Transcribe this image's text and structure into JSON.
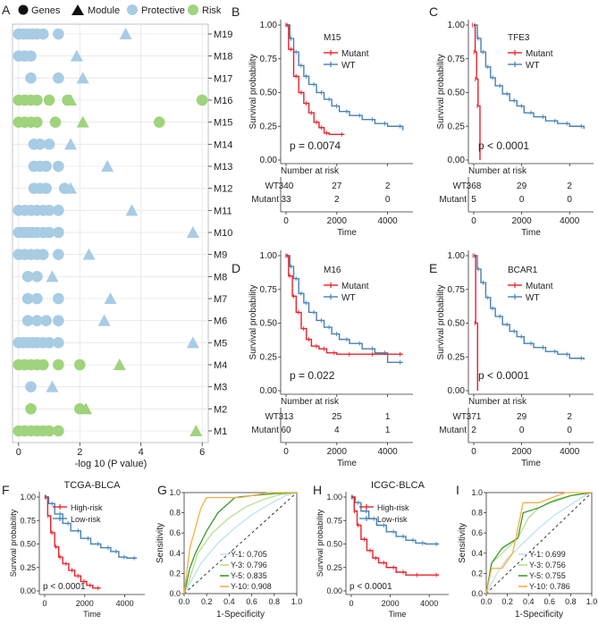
{
  "colors": {
    "protective": "#a8cce4",
    "risk": "#9fd37c",
    "wt": "#4682b4",
    "mutant": "#e8222a",
    "high": "#e8222a",
    "low": "#4682b4",
    "y1": "#bfe0f0",
    "y3": "#b6e08e",
    "y5": "#3a9a2a",
    "y10": "#f5b042"
  },
  "chart_data": [
    {
      "panel": "A",
      "type": "scatter",
      "legend": {
        "genes": "Genes",
        "module": "Module",
        "protective": "Protective",
        "risk": "Risk"
      },
      "xlabel": "-log 10 (P value)",
      "xticks": [
        "0",
        "2",
        "4",
        "6"
      ],
      "xlim": [
        -0.2,
        6.2
      ],
      "modules": [
        {
          "name": "M19",
          "cls": "protective",
          "genes": [
            0,
            0.15,
            0.3,
            0.45,
            0.6,
            0.8,
            1.3
          ],
          "module": 3.5
        },
        {
          "name": "M18",
          "cls": "protective",
          "genes": [
            0,
            0.2,
            0.4
          ],
          "module": 1.9
        },
        {
          "name": "M17",
          "cls": "protective",
          "genes": [
            0.4,
            1.3
          ],
          "module": 2.1
        },
        {
          "name": "M16",
          "cls": "risk",
          "genes": [
            0,
            0.2,
            0.4,
            0.6,
            1.0,
            1.6,
            6.0
          ],
          "module": 1.7
        },
        {
          "name": "M15",
          "cls": "risk",
          "genes": [
            0,
            0.2,
            0.4,
            0.6,
            1.2,
            4.6
          ],
          "module": 2.1
        },
        {
          "name": "M14",
          "cls": "protective",
          "genes": [
            0.5,
            0.7,
            1.0
          ],
          "module": 1.7
        },
        {
          "name": "M13",
          "cls": "protective",
          "genes": [
            0.5,
            0.7,
            0.9,
            1.3
          ],
          "module": 2.9
        },
        {
          "name": "M12",
          "cls": "protective",
          "genes": [
            0.5,
            0.7,
            0.9,
            1.5
          ],
          "module": 1.7
        },
        {
          "name": "M11",
          "cls": "protective",
          "genes": [
            0,
            0.2,
            0.4,
            0.6,
            0.8,
            1.0,
            1.3
          ],
          "module": 3.7
        },
        {
          "name": "M10",
          "cls": "protective",
          "genes": [
            0,
            0.15,
            0.3,
            0.45,
            0.6,
            0.8,
            1.0,
            1.3
          ],
          "module": 5.7
        },
        {
          "name": "M9",
          "cls": "protective",
          "genes": [
            0,
            0.2,
            0.4,
            0.6,
            0.8,
            1.3
          ],
          "module": 2.3
        },
        {
          "name": "M8",
          "cls": "protective",
          "genes": [
            0.3,
            0.6
          ],
          "module": 1.1
        },
        {
          "name": "M7",
          "cls": "protective",
          "genes": [
            0.3,
            0.6,
            1.3
          ],
          "module": 3.0
        },
        {
          "name": "M6",
          "cls": "protective",
          "genes": [
            0.3,
            0.6,
            0.9,
            1.3
          ],
          "module": 2.8
        },
        {
          "name": "M5",
          "cls": "protective",
          "genes": [
            0,
            0.15,
            0.3,
            0.45,
            0.6,
            0.8,
            1.0,
            1.3
          ],
          "module": 5.7
        },
        {
          "name": "M4",
          "cls": "risk",
          "genes": [
            0,
            0.2,
            0.4,
            0.6,
            0.8,
            1.3,
            2.0
          ],
          "module": 3.3
        },
        {
          "name": "M3",
          "cls": "protective",
          "genes": [
            0.4
          ],
          "module": 1.1
        },
        {
          "name": "M2",
          "cls": "risk",
          "genes": [
            0.4,
            2.0
          ],
          "module": 2.2
        },
        {
          "name": "M1",
          "cls": "risk",
          "genes": [
            0,
            0.2,
            0.4,
            0.6,
            0.8,
            1.0,
            1.3
          ],
          "module": 5.8
        }
      ]
    },
    {
      "panel": "B",
      "type": "line",
      "title": "M15",
      "ylabel": "Survival probability",
      "xlabel": "Time",
      "yticks": [
        "0.00",
        "0.25",
        "0.50",
        "0.75",
        "1.00"
      ],
      "xticks": [
        "0",
        "2000",
        "4000"
      ],
      "xlim": [
        0,
        5000
      ],
      "pvalue": "p = 0.0074",
      "legend": [
        "Mutant",
        "WT"
      ],
      "risk_title": "Number at risk",
      "risk_rows": [
        {
          "name": "WT",
          "values": [
            "340",
            "27",
            "2"
          ]
        },
        {
          "name": "Mutant",
          "values": [
            "33",
            "2",
            "0"
          ]
        }
      ],
      "series": [
        {
          "name": "WT",
          "x": [
            0,
            150,
            300,
            500,
            700,
            900,
            1200,
            1500,
            1800,
            2100,
            2500,
            3000,
            3500,
            4000,
            4600
          ],
          "y": [
            1,
            0.9,
            0.8,
            0.7,
            0.62,
            0.56,
            0.5,
            0.45,
            0.4,
            0.36,
            0.33,
            0.3,
            0.27,
            0.25,
            0.22
          ]
        },
        {
          "name": "Mutant",
          "x": [
            0,
            100,
            300,
            500,
            700,
            900,
            1100,
            1300,
            1500,
            1700,
            2300
          ],
          "y": [
            1,
            0.82,
            0.62,
            0.5,
            0.42,
            0.35,
            0.28,
            0.24,
            0.2,
            0.19,
            0.19
          ]
        }
      ]
    },
    {
      "panel": "C",
      "type": "line",
      "title": "TFE3",
      "ylabel": "Survival probability",
      "xlabel": "Time",
      "yticks": [
        "0.00",
        "0.25",
        "0.50",
        "0.75",
        "1.00"
      ],
      "xticks": [
        "0",
        "2000",
        "4000"
      ],
      "xlim": [
        0,
        5000
      ],
      "pvalue": "p < 0.0001",
      "legend": [
        "Mutant",
        "WT"
      ],
      "risk_title": "Number at risk",
      "risk_rows": [
        {
          "name": "WT",
          "values": [
            "368",
            "29",
            "2"
          ]
        },
        {
          "name": "Mutant",
          "values": [
            "5",
            "0",
            "0"
          ]
        }
      ],
      "series": [
        {
          "name": "WT",
          "x": [
            0,
            150,
            300,
            500,
            700,
            900,
            1200,
            1500,
            1800,
            2100,
            2500,
            3000,
            3500,
            4000,
            4600
          ],
          "y": [
            1,
            0.9,
            0.8,
            0.69,
            0.61,
            0.55,
            0.49,
            0.44,
            0.4,
            0.35,
            0.32,
            0.29,
            0.27,
            0.25,
            0.23
          ]
        },
        {
          "name": "Mutant",
          "x": [
            0,
            60,
            120,
            180,
            260
          ],
          "y": [
            1,
            0.8,
            0.6,
            0.4,
            0
          ]
        }
      ]
    },
    {
      "panel": "D",
      "type": "line",
      "title": "M16",
      "ylabel": "Survival probability",
      "xlabel": "Time",
      "yticks": [
        "0.00",
        "0.25",
        "0.50",
        "0.75",
        "1.00"
      ],
      "xticks": [
        "0",
        "2000",
        "4000"
      ],
      "xlim": [
        0,
        5000
      ],
      "pvalue": "p = 0.022",
      "legend": [
        "Mutant",
        "WT"
      ],
      "risk_title": "Number at risk",
      "risk_rows": [
        {
          "name": "WT",
          "values": [
            "313",
            "25",
            "1"
          ]
        },
        {
          "name": "Mutant",
          "values": [
            "60",
            "4",
            "1"
          ]
        }
      ],
      "series": [
        {
          "name": "WT",
          "x": [
            0,
            150,
            300,
            500,
            700,
            900,
            1200,
            1500,
            1800,
            2100,
            2500,
            3000,
            3500,
            4000,
            4600
          ],
          "y": [
            1,
            0.92,
            0.83,
            0.72,
            0.65,
            0.58,
            0.52,
            0.47,
            0.42,
            0.38,
            0.35,
            0.31,
            0.28,
            0.21,
            0.21
          ]
        },
        {
          "name": "Mutant",
          "x": [
            0,
            100,
            250,
            400,
            600,
            800,
            1000,
            1300,
            1600,
            2000,
            2600,
            3500,
            4600
          ],
          "y": [
            1,
            0.85,
            0.7,
            0.58,
            0.46,
            0.38,
            0.33,
            0.31,
            0.28,
            0.27,
            0.27,
            0.27,
            0.27
          ]
        }
      ]
    },
    {
      "panel": "E",
      "type": "line",
      "title": "BCAR1",
      "ylabel": "Survival probability",
      "xlabel": "Time",
      "yticks": [
        "0.00",
        "0.25",
        "0.50",
        "0.75",
        "1.00"
      ],
      "xticks": [
        "0",
        "2000",
        "4000"
      ],
      "xlim": [
        0,
        5000
      ],
      "pvalue": "p < 0.0001",
      "legend": [
        "Mutant",
        "WT"
      ],
      "risk_title": "Number at risk",
      "risk_rows": [
        {
          "name": "WT",
          "values": [
            "371",
            "29",
            "2"
          ]
        },
        {
          "name": "Mutant",
          "values": [
            "2",
            "0",
            "0"
          ]
        }
      ],
      "series": [
        {
          "name": "WT",
          "x": [
            0,
            150,
            300,
            500,
            700,
            900,
            1200,
            1500,
            1800,
            2100,
            2500,
            3000,
            3500,
            4000,
            4600
          ],
          "y": [
            1,
            0.9,
            0.8,
            0.69,
            0.61,
            0.55,
            0.49,
            0.44,
            0.4,
            0.35,
            0.32,
            0.29,
            0.27,
            0.24,
            0.23
          ]
        },
        {
          "name": "Mutant",
          "x": [
            0,
            80,
            160
          ],
          "y": [
            1,
            0.5,
            0
          ]
        }
      ]
    },
    {
      "panel": "F",
      "type": "line",
      "title": "TCGA-BLCA",
      "ylabel": "Survival probability",
      "xlabel": "Time",
      "yticks": [
        "0.00",
        "0.25",
        "0.50",
        "0.75",
        "1.00"
      ],
      "xticks": [
        "0",
        "2000",
        "4000"
      ],
      "xlim": [
        0,
        5000
      ],
      "pvalue": "p < 0.0001",
      "legend": [
        "High-risk",
        "Low-risk"
      ],
      "series": [
        {
          "name": "Low-risk",
          "x": [
            0,
            200,
            500,
            900,
            1300,
            1800,
            2300,
            2800,
            3300,
            3700,
            4100,
            4600
          ],
          "y": [
            1,
            0.93,
            0.82,
            0.72,
            0.64,
            0.56,
            0.5,
            0.46,
            0.42,
            0.36,
            0.35,
            0.35
          ]
        },
        {
          "name": "High-risk",
          "x": [
            0,
            150,
            300,
            500,
            700,
            900,
            1200,
            1500,
            1800,
            2100,
            2400,
            2800
          ],
          "y": [
            1,
            0.8,
            0.62,
            0.47,
            0.36,
            0.29,
            0.22,
            0.16,
            0.1,
            0.06,
            0.03,
            0.03
          ]
        }
      ]
    },
    {
      "panel": "G",
      "type": "line",
      "xlabel": "1-Specificity",
      "ylabel": "Sensitivity",
      "xticks": [
        "0.0",
        "0.2",
        "0.4",
        "0.6",
        "0.8",
        "1.0"
      ],
      "yticks": [
        "0.0",
        "0.2",
        "0.4",
        "0.6",
        "0.8",
        "1.0"
      ],
      "legend": [
        "Y-1: 0.705",
        "Y-3: 0.796",
        "Y-5: 0.835",
        "Y-10: 0.908"
      ],
      "series": [
        {
          "name": "Y-1",
          "x": [
            0,
            0.05,
            0.15,
            0.3,
            0.45,
            0.6,
            0.75,
            0.9,
            1
          ],
          "y": [
            0,
            0.1,
            0.3,
            0.5,
            0.65,
            0.78,
            0.88,
            0.97,
            1
          ]
        },
        {
          "name": "Y-3",
          "x": [
            0,
            0.05,
            0.12,
            0.25,
            0.4,
            0.55,
            0.7,
            0.85,
            1
          ],
          "y": [
            0,
            0.15,
            0.4,
            0.6,
            0.75,
            0.86,
            0.93,
            0.98,
            1
          ]
        },
        {
          "name": "Y-5",
          "x": [
            0,
            0.05,
            0.1,
            0.2,
            0.3,
            0.45,
            0.6,
            0.8,
            1
          ],
          "y": [
            0,
            0.25,
            0.4,
            0.62,
            0.8,
            0.95,
            0.97,
            0.99,
            1
          ]
        },
        {
          "name": "Y-10",
          "x": [
            0,
            0.05,
            0.1,
            0.15,
            0.2,
            0.5,
            0.75,
            1
          ],
          "y": [
            0,
            0.45,
            0.65,
            0.85,
            0.95,
            0.95,
            1,
            1
          ]
        }
      ]
    },
    {
      "panel": "H",
      "type": "line",
      "title": "ICGC-BLCA",
      "ylabel": "Survival probability",
      "xlabel": "Time",
      "yticks": [
        "0.00",
        "0.25",
        "0.50",
        "0.75",
        "1.00"
      ],
      "xticks": [
        "0",
        "2000",
        "4000"
      ],
      "xlim": [
        0,
        5000
      ],
      "pvalue": "p < 0.0001",
      "legend": [
        "High-risk",
        "Low-risk"
      ],
      "series": [
        {
          "name": "Low-risk",
          "x": [
            0,
            200,
            500,
            900,
            1300,
            1800,
            2300,
            2800,
            3300,
            3800,
            4500
          ],
          "y": [
            1,
            0.94,
            0.85,
            0.77,
            0.7,
            0.63,
            0.58,
            0.54,
            0.51,
            0.5,
            0.5
          ]
        },
        {
          "name": "High-risk",
          "x": [
            0,
            150,
            300,
            500,
            800,
            1100,
            1400,
            1800,
            2300,
            2800,
            3500,
            4500
          ],
          "y": [
            1,
            0.85,
            0.7,
            0.55,
            0.43,
            0.35,
            0.3,
            0.25,
            0.2,
            0.17,
            0.17,
            0.17
          ]
        }
      ]
    },
    {
      "panel": "I",
      "type": "line",
      "xlabel": "1-Specificity",
      "ylabel": "Sensitivity",
      "xticks": [
        "0.0",
        "0.2",
        "0.4",
        "0.6",
        "0.8",
        "1.0"
      ],
      "yticks": [
        "0.0",
        "0.2",
        "0.4",
        "0.6",
        "0.8",
        "1.0"
      ],
      "legend": [
        "Y-1: 0.699",
        "Y-3: 0.756",
        "Y-5: 0.755",
        "Y-10: 0.786"
      ],
      "series": [
        {
          "name": "Y-1",
          "x": [
            0,
            0.1,
            0.2,
            0.35,
            0.5,
            0.65,
            0.8,
            0.95,
            1
          ],
          "y": [
            0,
            0.2,
            0.35,
            0.5,
            0.65,
            0.78,
            0.88,
            0.98,
            1
          ]
        },
        {
          "name": "Y-3",
          "x": [
            0,
            0.05,
            0.15,
            0.3,
            0.4,
            0.5,
            0.65,
            0.85,
            1
          ],
          "y": [
            0,
            0.3,
            0.4,
            0.55,
            0.75,
            0.85,
            0.93,
            0.98,
            1
          ]
        },
        {
          "name": "Y-5",
          "x": [
            0,
            0.05,
            0.15,
            0.3,
            0.35,
            0.5,
            0.6,
            0.8,
            1
          ],
          "y": [
            0,
            0.3,
            0.45,
            0.55,
            0.8,
            0.85,
            0.9,
            0.97,
            1
          ]
        },
        {
          "name": "Y-10",
          "x": [
            0,
            0.05,
            0.15,
            0.25,
            0.35,
            0.5,
            0.75,
            1
          ],
          "y": [
            0,
            0.25,
            0.25,
            0.4,
            0.9,
            0.9,
            1,
            1
          ]
        }
      ]
    }
  ]
}
